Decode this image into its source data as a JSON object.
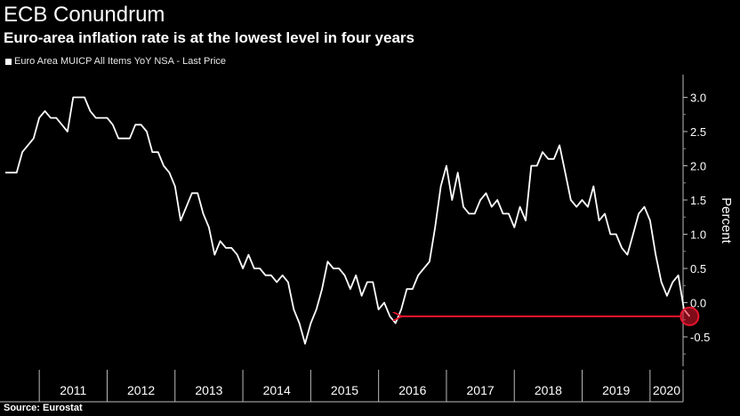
{
  "header": {
    "title": "ECB Conundrum",
    "subtitle": "Euro-area inflation rate is at the lowest level in four years"
  },
  "footer": {
    "source": "Source: Eurostat"
  },
  "chart_data": {
    "type": "line",
    "title": "ECB Conundrum",
    "subtitle": "Euro-area inflation rate is at the lowest level in four years",
    "ylabel": "Percent",
    "xlabel": "",
    "ylim": [
      -0.9,
      3.3
    ],
    "xlim": [
      "2010-07",
      "2020-12"
    ],
    "grid": false,
    "legend_position": "top-left",
    "y_axis_side": "right",
    "yticks": [
      "3.0",
      "2.5",
      "2.0",
      "1.5",
      "1.0",
      "0.5",
      "0.0",
      "-0.5"
    ],
    "xticks": [
      "2011",
      "2012",
      "2013",
      "2014",
      "2015",
      "2016",
      "2017",
      "2018",
      "2019",
      "2020"
    ],
    "series": [
      {
        "name": "Euro Area MUICP All Items YoY NSA - Last Price",
        "color": "#ffffff",
        "x": [
          "2010-07",
          "2010-08",
          "2010-09",
          "2010-10",
          "2010-11",
          "2010-12",
          "2011-01",
          "2011-02",
          "2011-03",
          "2011-04",
          "2011-05",
          "2011-06",
          "2011-07",
          "2011-08",
          "2011-09",
          "2011-10",
          "2011-11",
          "2011-12",
          "2012-01",
          "2012-02",
          "2012-03",
          "2012-04",
          "2012-05",
          "2012-06",
          "2012-07",
          "2012-08",
          "2012-09",
          "2012-10",
          "2012-11",
          "2012-12",
          "2013-01",
          "2013-02",
          "2013-03",
          "2013-04",
          "2013-05",
          "2013-06",
          "2013-07",
          "2013-08",
          "2013-09",
          "2013-10",
          "2013-11",
          "2013-12",
          "2014-01",
          "2014-02",
          "2014-03",
          "2014-04",
          "2014-05",
          "2014-06",
          "2014-07",
          "2014-08",
          "2014-09",
          "2014-10",
          "2014-11",
          "2014-12",
          "2015-01",
          "2015-02",
          "2015-03",
          "2015-04",
          "2015-05",
          "2015-06",
          "2015-07",
          "2015-08",
          "2015-09",
          "2015-10",
          "2015-11",
          "2015-12",
          "2016-01",
          "2016-02",
          "2016-03",
          "2016-04",
          "2016-05",
          "2016-06",
          "2016-07",
          "2016-08",
          "2016-09",
          "2016-10",
          "2016-11",
          "2016-12",
          "2017-01",
          "2017-02",
          "2017-03",
          "2017-04",
          "2017-05",
          "2017-06",
          "2017-07",
          "2017-08",
          "2017-09",
          "2017-10",
          "2017-11",
          "2017-12",
          "2018-01",
          "2018-02",
          "2018-03",
          "2018-04",
          "2018-05",
          "2018-06",
          "2018-07",
          "2018-08",
          "2018-09",
          "2018-10",
          "2018-11",
          "2018-12",
          "2019-01",
          "2019-02",
          "2019-03",
          "2019-04",
          "2019-05",
          "2019-06",
          "2019-07",
          "2019-08",
          "2019-09",
          "2019-10",
          "2019-11",
          "2019-12",
          "2020-01",
          "2020-02",
          "2020-03",
          "2020-04",
          "2020-05",
          "2020-06",
          "2020-07",
          "2020-08"
        ],
        "y": [
          1.9,
          1.9,
          1.9,
          2.2,
          2.3,
          2.4,
          2.7,
          2.8,
          2.7,
          2.7,
          2.6,
          2.5,
          3.0,
          3.0,
          3.0,
          2.8,
          2.7,
          2.7,
          2.7,
          2.6,
          2.4,
          2.4,
          2.4,
          2.6,
          2.6,
          2.5,
          2.2,
          2.2,
          2.0,
          1.9,
          1.7,
          1.2,
          1.4,
          1.6,
          1.6,
          1.3,
          1.1,
          0.7,
          0.9,
          0.8,
          0.8,
          0.7,
          0.5,
          0.7,
          0.5,
          0.5,
          0.4,
          0.4,
          0.3,
          0.4,
          0.3,
          -0.1,
          -0.3,
          -0.6,
          -0.3,
          -0.1,
          0.2,
          0.6,
          0.5,
          0.5,
          0.4,
          0.2,
          0.4,
          0.1,
          0.3,
          0.3,
          -0.1,
          0.0,
          -0.2,
          -0.3,
          -0.1,
          0.2,
          0.2,
          0.4,
          0.5,
          0.6,
          1.1,
          1.7,
          2.0,
          1.5,
          1.9,
          1.4,
          1.3,
          1.3,
          1.5,
          1.6,
          1.4,
          1.5,
          1.3,
          1.3,
          1.1,
          1.4,
          1.2,
          2.0,
          2.0,
          2.2,
          2.1,
          2.1,
          2.3,
          1.9,
          1.5,
          1.4,
          1.5,
          1.4,
          1.7,
          1.2,
          1.3,
          1.0,
          1.0,
          0.8,
          0.7,
          1.0,
          1.3,
          1.4,
          1.2,
          0.7,
          0.3,
          0.1,
          0.3,
          0.4,
          -0.1,
          -0.2
        ]
      }
    ],
    "annotations": [
      {
        "type": "arrow",
        "from_x": "2020-08",
        "to_x": "2016-04",
        "y": -0.2,
        "color": "#e8142d"
      },
      {
        "type": "circle",
        "x": "2020-08",
        "y": -0.2,
        "color": "#e8142d"
      }
    ]
  }
}
